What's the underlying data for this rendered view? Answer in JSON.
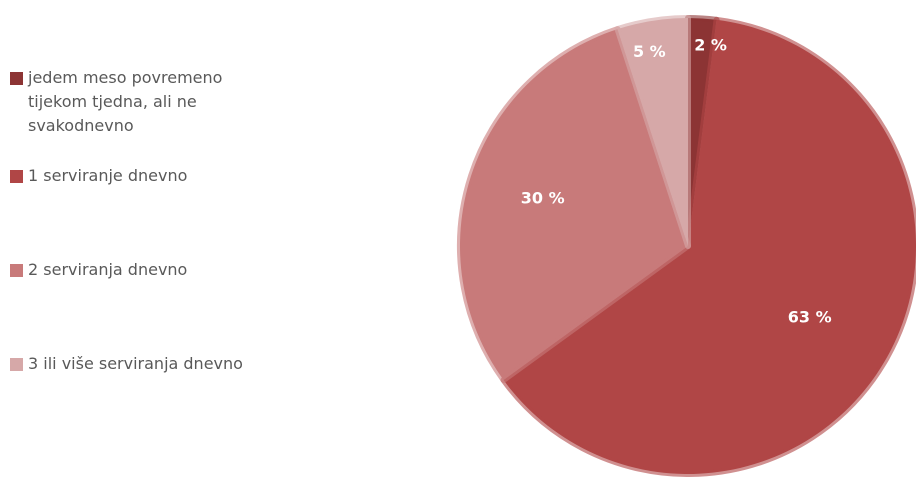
{
  "chart_data": {
    "type": "pie",
    "categories": [
      "jedem meso povremeno tijekom tjedna, ali ne svakodnevno",
      "1 serviranje dnevno",
      "2 serviranja dnevno",
      "3 ili više serviranja dnevno"
    ],
    "values": [
      2,
      63,
      30,
      5
    ],
    "value_labels": [
      "2 %",
      "63 %",
      "30 %",
      "5 %"
    ],
    "colors": [
      "#8c3434",
      "#b04646",
      "#c87a7a",
      "#d6a8a8"
    ],
    "legend": "left"
  }
}
